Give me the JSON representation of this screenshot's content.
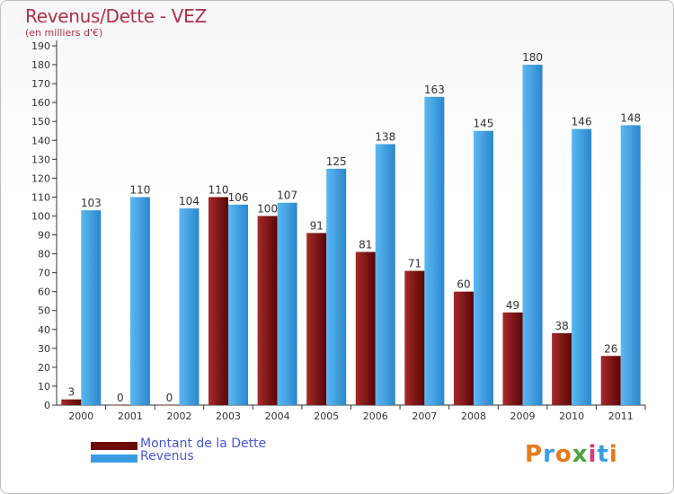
{
  "title": "Revenus/Dette - VEZ",
  "subtitle": "(en milliers d'€)",
  "logo": "Proxiti",
  "colors": {
    "debt": "#7a1010",
    "revenue": "#3a9de3",
    "axis": "#333333",
    "title": "#b0304a"
  },
  "chart_data": {
    "type": "bar",
    "categories": [
      "2000",
      "2001",
      "2002",
      "2003",
      "2004",
      "2005",
      "2006",
      "2007",
      "2008",
      "2009",
      "2010",
      "2011"
    ],
    "series": [
      {
        "name": "Montant de la Dette",
        "values": [
          3,
          0,
          0,
          110,
          100,
          91,
          81,
          71,
          60,
          49,
          38,
          26
        ]
      },
      {
        "name": "Revenus",
        "values": [
          103,
          110,
          104,
          106,
          107,
          125,
          138,
          163,
          145,
          180,
          146,
          148
        ]
      }
    ],
    "ylim": [
      0,
      190
    ],
    "yticks": [
      0,
      10,
      20,
      30,
      40,
      50,
      60,
      70,
      80,
      90,
      100,
      110,
      120,
      130,
      140,
      150,
      160,
      170,
      180,
      190
    ],
    "legend": "bottom-left",
    "grid": false
  }
}
